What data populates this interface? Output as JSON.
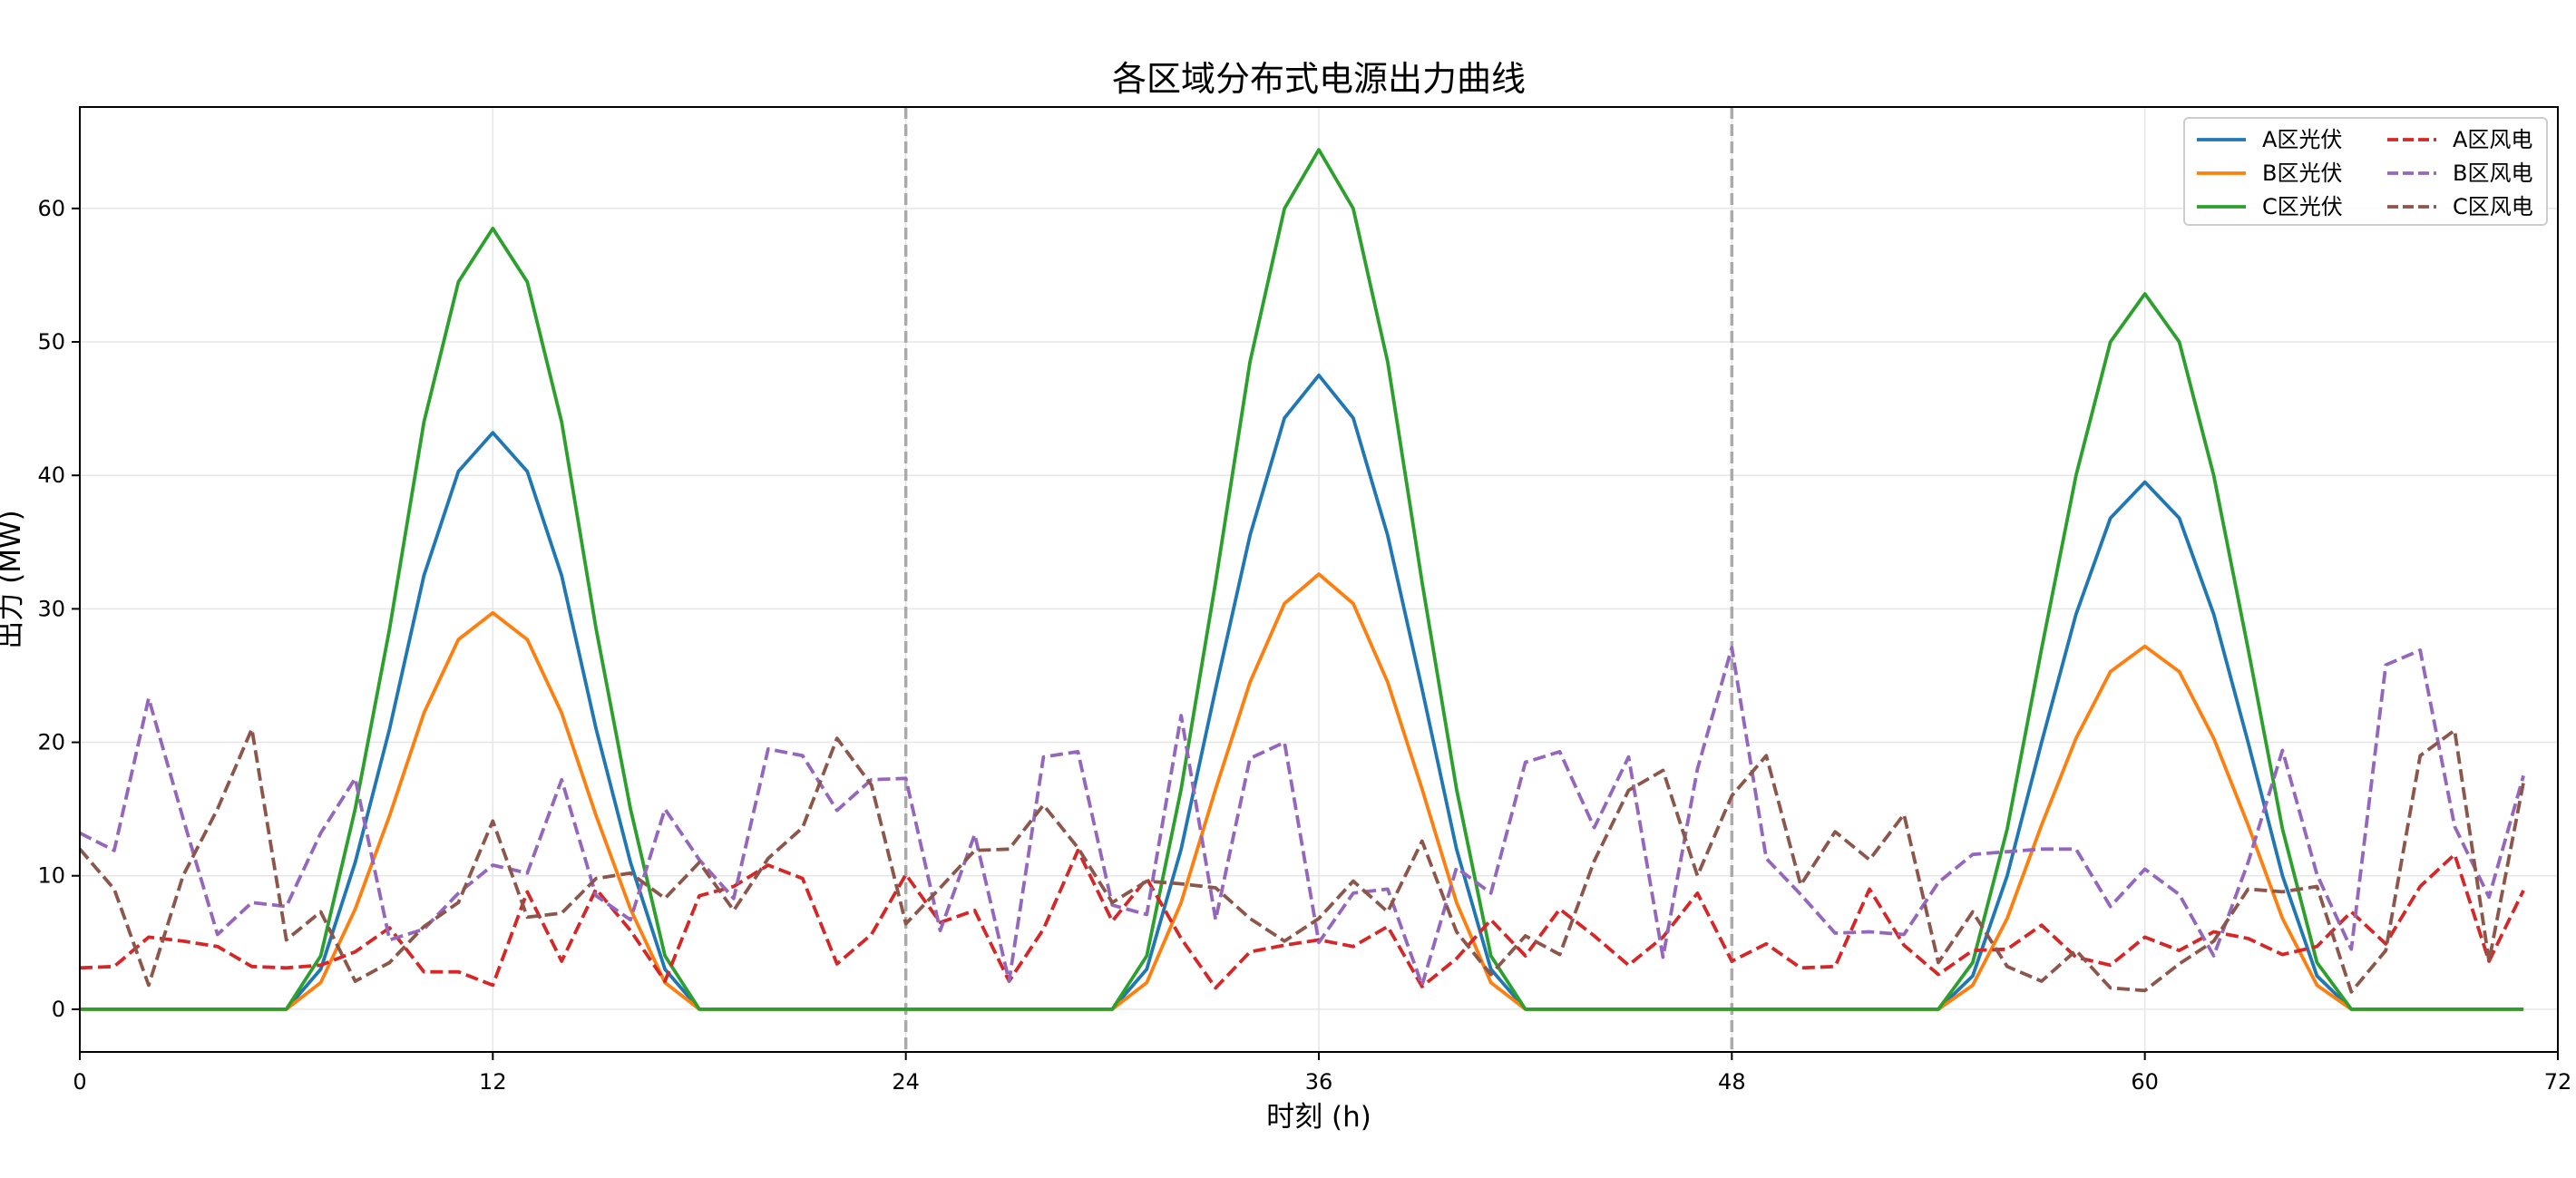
{
  "chart_data": {
    "type": "line",
    "title": "各区域分布式电源出力曲线",
    "xlabel": "时刻 (h)",
    "ylabel": "出力 (MW)",
    "xlim": [
      0,
      72
    ],
    "ylim": [
      -3.2,
      67.6
    ],
    "xticks": [
      0,
      12,
      24,
      36,
      48,
      60,
      72
    ],
    "yticks": [
      0,
      10,
      20,
      30,
      40,
      50,
      60
    ],
    "grid": true,
    "legend_position": "top-right",
    "vlines": [
      24,
      48
    ],
    "x": [
      0,
      1,
      2,
      3,
      4,
      5,
      6,
      7,
      8,
      9,
      10,
      11,
      12,
      13,
      14,
      15,
      16,
      17,
      18,
      19,
      20,
      21,
      22,
      23,
      24,
      25,
      26,
      27,
      28,
      29,
      30,
      31,
      32,
      33,
      34,
      35,
      36,
      37,
      38,
      39,
      40,
      41,
      42,
      43,
      44,
      45,
      46,
      47,
      48,
      49,
      50,
      51,
      52,
      53,
      54,
      55,
      56,
      57,
      58,
      59,
      60,
      61,
      62,
      63,
      64,
      65,
      66,
      67,
      68,
      69,
      70,
      71
    ],
    "series": [
      {
        "name": "A区光伏",
        "color": "#1f77b4",
        "style": "solid",
        "values": [
          0,
          0,
          0,
          0,
          0,
          0,
          0,
          3,
          11,
          21,
          32.5,
          40.3,
          43.2,
          40.3,
          32.5,
          21,
          11,
          3,
          0,
          0,
          0,
          0,
          0,
          0,
          0,
          0,
          0,
          0,
          0,
          0,
          0,
          3,
          12,
          24,
          35.5,
          44.3,
          47.5,
          44.3,
          35.5,
          24,
          12,
          3,
          0,
          0,
          0,
          0,
          0,
          0,
          0,
          0,
          0,
          0,
          0,
          0,
          0,
          2.5,
          10,
          20,
          29.6,
          36.8,
          39.5,
          36.8,
          29.6,
          20,
          10,
          2.5,
          0,
          0,
          0,
          0,
          0,
          0
        ]
      },
      {
        "name": "B区光伏",
        "color": "#ff7f0e",
        "style": "solid",
        "values": [
          0,
          0,
          0,
          0,
          0,
          0,
          0,
          2,
          7.5,
          14.5,
          22.2,
          27.7,
          29.7,
          27.7,
          22.2,
          14.5,
          7.5,
          2,
          0,
          0,
          0,
          0,
          0,
          0,
          0,
          0,
          0,
          0,
          0,
          0,
          0,
          2,
          8,
          16.5,
          24.5,
          30.4,
          32.6,
          30.4,
          24.5,
          16.5,
          8,
          2,
          0,
          0,
          0,
          0,
          0,
          0,
          0,
          0,
          0,
          0,
          0,
          0,
          0,
          1.8,
          6.8,
          13.8,
          20.3,
          25.3,
          27.2,
          25.3,
          20.3,
          13.8,
          6.8,
          1.8,
          0,
          0,
          0,
          0,
          0,
          0
        ]
      },
      {
        "name": "C区光伏",
        "color": "#2ca02c",
        "style": "solid",
        "values": [
          0,
          0,
          0,
          0,
          0,
          0,
          0,
          4,
          15,
          28.5,
          44,
          54.5,
          58.5,
          54.5,
          44,
          28.5,
          15,
          4,
          0,
          0,
          0,
          0,
          0,
          0,
          0,
          0,
          0,
          0,
          0,
          0,
          0,
          4,
          16.5,
          32,
          48.5,
          60,
          64.4,
          60,
          48.5,
          32,
          16.5,
          4,
          0,
          0,
          0,
          0,
          0,
          0,
          0,
          0,
          0,
          0,
          0,
          0,
          0,
          3.5,
          13.5,
          27,
          40,
          50,
          53.6,
          50,
          40,
          27,
          13.5,
          3.5,
          0,
          0,
          0,
          0,
          0,
          0
        ]
      },
      {
        "name": "A区风电",
        "color": "#d62728",
        "style": "dashed",
        "values": [
          3.1,
          3.2,
          5.4,
          5.1,
          4.7,
          3.2,
          3.1,
          3.3,
          4.3,
          6.1,
          2.8,
          2.8,
          1.8,
          8.8,
          3.6,
          9,
          5.9,
          2.1,
          8.5,
          9.2,
          10.8,
          9.8,
          3.4,
          5.6,
          10.1,
          6.5,
          7.4,
          2.1,
          6,
          11.9,
          6.6,
          9.8,
          5.3,
          1.6,
          4.3,
          4.8,
          5.2,
          4.7,
          6.2,
          1.7,
          3.8,
          6.7,
          4,
          7.5,
          5.5,
          3.3,
          5.4,
          8.7,
          3.6,
          4.9,
          3.1,
          3.2,
          9,
          4.8,
          2.6,
          4.4,
          4.5,
          6.3,
          3.9,
          3.3,
          5.4,
          4.4,
          5.8,
          5.3,
          4.1,
          4.7,
          7.3,
          4.9,
          9.2,
          11.6,
          3.6,
          8.9
        ]
      },
      {
        "name": "B区风电",
        "color": "#9467bd",
        "style": "dashed",
        "values": [
          13.2,
          11.9,
          23.3,
          14.3,
          5.6,
          8,
          7.7,
          13.2,
          17.3,
          5.2,
          6,
          8.7,
          10.8,
          10.2,
          17.2,
          8.5,
          6.7,
          15,
          11.2,
          8.3,
          19.5,
          19,
          14.9,
          17.2,
          17.3,
          5.9,
          13.1,
          2.1,
          18.9,
          19.3,
          7.8,
          7.1,
          22,
          6.7,
          18.8,
          20,
          5,
          8.7,
          9,
          1.8,
          10.6,
          8.7,
          18.5,
          19.3,
          13.6,
          18.9,
          3.9,
          18,
          27.1,
          11.3,
          8.6,
          5.7,
          5.8,
          5.6,
          9.5,
          11.6,
          11.8,
          12,
          12,
          7.7,
          10.5,
          8.6,
          4,
          11,
          19.4,
          10.1,
          4.5,
          25.8,
          26.9,
          13.7,
          8.4,
          17.5
        ]
      },
      {
        "name": "C区风电",
        "color": "#8c564b",
        "style": "dashed",
        "values": [
          12,
          9,
          1.8,
          10,
          15,
          21,
          5.2,
          7.3,
          2.1,
          3.5,
          6.2,
          8,
          14.1,
          6.9,
          7.2,
          9.8,
          10.2,
          8.3,
          11,
          7.4,
          11.3,
          13.6,
          20.3,
          16.8,
          6.4,
          9.1,
          11.9,
          12,
          15.3,
          12.1,
          8,
          9.6,
          9.4,
          9.1,
          6.8,
          5.1,
          6.8,
          9.6,
          7.3,
          12.6,
          5.8,
          2.6,
          5.5,
          4.1,
          11.1,
          16.4,
          17.9,
          10,
          16,
          19,
          9.3,
          13.3,
          11.2,
          14.6,
          3.5,
          7.3,
          3.2,
          2.1,
          4.4,
          1.6,
          1.4,
          3.4,
          5.1,
          9,
          8.8,
          9.2,
          1.3,
          4.4,
          19,
          20.9,
          3.6,
          17
        ]
      }
    ]
  }
}
